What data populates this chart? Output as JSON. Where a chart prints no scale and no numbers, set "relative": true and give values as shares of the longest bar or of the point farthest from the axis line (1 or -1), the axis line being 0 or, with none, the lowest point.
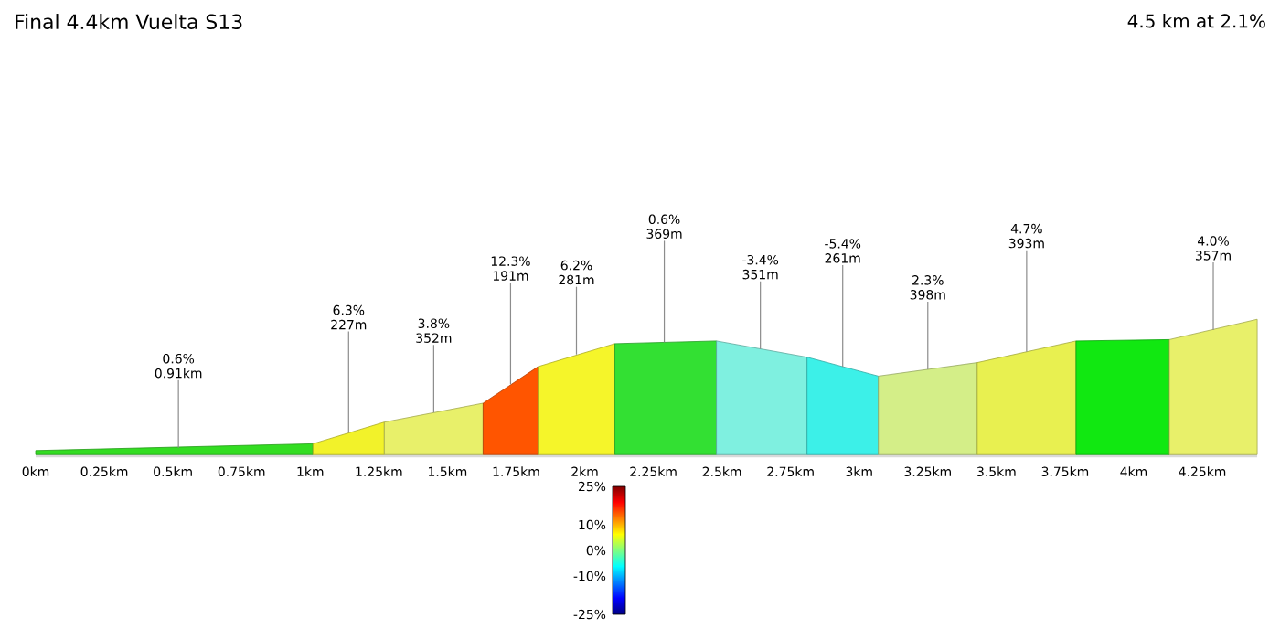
{
  "chart_data": {
    "type": "area",
    "title": "Final 4.4km Vuelta S13",
    "subtitle": "4.5 km at 2.1%",
    "relative": true,
    "xlim": [
      0,
      4.45
    ],
    "xticks": [
      {
        "value": 0,
        "label": "0km"
      },
      {
        "value": 0.25,
        "label": "0.25km"
      },
      {
        "value": 0.5,
        "label": "0.5km"
      },
      {
        "value": 0.75,
        "label": "0.75km"
      },
      {
        "value": 1,
        "label": "1km"
      },
      {
        "value": 1.25,
        "label": "1.25km"
      },
      {
        "value": 1.5,
        "label": "1.5km"
      },
      {
        "value": 1.75,
        "label": "1.75km"
      },
      {
        "value": 2,
        "label": "2km"
      },
      {
        "value": 2.25,
        "label": "2.25km"
      },
      {
        "value": 2.5,
        "label": "2.5km"
      },
      {
        "value": 2.75,
        "label": "2.75km"
      },
      {
        "value": 3,
        "label": "3km"
      },
      {
        "value": 3.25,
        "label": "3.25km"
      },
      {
        "value": 3.5,
        "label": "3.5km"
      },
      {
        "value": 3.75,
        "label": "3.75km"
      },
      {
        "value": 4,
        "label": "4km"
      },
      {
        "value": 4.25,
        "label": "4.25km"
      }
    ],
    "series": [
      {
        "color": "#33dd22",
        "x": [
          0,
          1.01
        ],
        "values": [
          0.03,
          0.08
        ]
      },
      {
        "color": "#f2f22a",
        "x": [
          1.01,
          1.27
        ],
        "values": [
          0.08,
          0.24
        ]
      },
      {
        "color": "#e8f06a",
        "x": [
          1.27,
          1.63
        ],
        "values": [
          0.24,
          0.38
        ]
      },
      {
        "color": "#ff5500",
        "x": [
          1.63,
          1.83
        ],
        "values": [
          0.38,
          0.65
        ]
      },
      {
        "color": "#f5f52a",
        "x": [
          1.83,
          2.11
        ],
        "values": [
          0.65,
          0.82
        ]
      },
      {
        "color": "#33e033",
        "x": [
          2.11,
          2.48
        ],
        "values": [
          0.82,
          0.84
        ]
      },
      {
        "color": "#7ff0e0",
        "x": [
          2.48,
          2.81
        ],
        "values": [
          0.84,
          0.72
        ]
      },
      {
        "color": "#3cf0e8",
        "x": [
          2.81,
          3.07
        ],
        "values": [
          0.72,
          0.58
        ]
      },
      {
        "color": "#d4ee88",
        "x": [
          3.07,
          3.43
        ],
        "values": [
          0.58,
          0.68
        ]
      },
      {
        "color": "#e8f050",
        "x": [
          3.43,
          3.79
        ],
        "values": [
          0.68,
          0.84
        ]
      },
      {
        "color": "#11e811",
        "x": [
          3.79,
          4.13
        ],
        "values": [
          0.84,
          0.85
        ]
      },
      {
        "color": "#e8f06a",
        "x": [
          4.13,
          4.45
        ],
        "values": [
          0.85,
          1
        ]
      }
    ],
    "annotations": [
      {
        "text": "0.6% 0.91km",
        "x": 0.52,
        "y": 0.05
      },
      {
        "text": "6.3% 227m",
        "x": 1.14,
        "y": 0.16
      },
      {
        "text": "3.8% 352m",
        "x": 1.45,
        "y": 0.31
      },
      {
        "text": "12.3% 191m",
        "x": 1.73,
        "y": 0.52
      },
      {
        "text": "6.2% 281m",
        "x": 1.97,
        "y": 0.74
      },
      {
        "text": "0.6% 369m",
        "x": 2.29,
        "y": 0.83
      },
      {
        "text": "-3.4% 351m",
        "x": 2.64,
        "y": 0.78
      },
      {
        "text": "-5.4% 261m",
        "x": 2.94,
        "y": 0.65
      },
      {
        "text": "2.3% 398m",
        "x": 3.25,
        "y": 0.63
      },
      {
        "text": "4.7% 393m",
        "x": 3.61,
        "y": 0.76
      },
      {
        "text": "4.0% 357m",
        "x": 4.29,
        "y": 0.92
      }
    ],
    "clim": [
      -25,
      25
    ],
    "cticks": [
      {
        "value": 25,
        "label": "25%"
      },
      {
        "value": 10,
        "label": "10%"
      },
      {
        "value": 0,
        "label": "0%"
      },
      {
        "value": -10,
        "label": "-10%"
      },
      {
        "value": -25,
        "label": "-25%"
      }
    ]
  }
}
